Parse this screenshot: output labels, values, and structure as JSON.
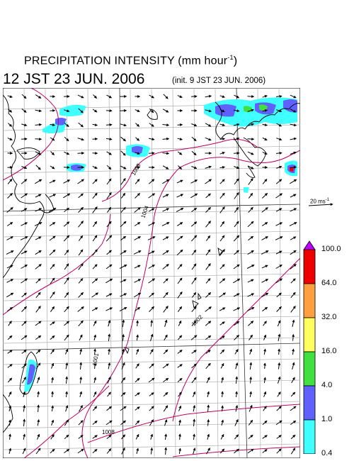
{
  "header": {
    "title_main": "PRECIPITATION INTENSITY (mm hour",
    "title_exponent": "-1",
    "title_close": ")",
    "valid_time": "12 JST 23 JUN. 2006",
    "init_time": "(init. 9 JST 23 JUN. 2006)"
  },
  "reference_vector": {
    "label": "20 ms",
    "exponent": "-1"
  },
  "colorbar": {
    "labels": [
      "100.0",
      "64.0",
      "32.0",
      "16.0",
      "4.0",
      "1.0",
      "0.4"
    ],
    "colors": [
      "#ff00ff",
      "#ee0000",
      "#ffa040",
      "#ffff60",
      "#40e040",
      "#6060ff",
      "#40ffff"
    ],
    "top_triangle_color": "#c000ff"
  },
  "map": {
    "isobar_labels": [
      "1008",
      "1004",
      "1002",
      "1001",
      "1008",
      "1001"
    ],
    "contour_color": "#c00060",
    "coast_color": "#000000",
    "grid_color": "#b0b0b0"
  }
}
